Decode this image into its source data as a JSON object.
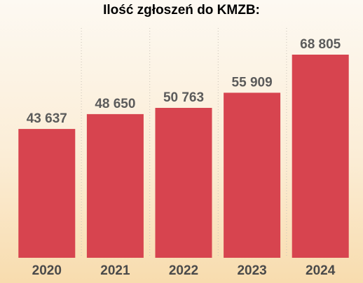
{
  "chart_data": {
    "type": "bar",
    "title": "Ilość zgłoszeń do KMZB:",
    "categories": [
      "2020",
      "2021",
      "2022",
      "2023",
      "2024"
    ],
    "values": [
      43637,
      48650,
      50763,
      55909,
      68805
    ],
    "value_labels": [
      "43 637",
      "48 650",
      "50 763",
      "55 909",
      "68 805"
    ],
    "xlabel": "",
    "ylabel": "",
    "ylim": [
      0,
      68805
    ],
    "grid": true,
    "bar_color": "#d7444f"
  }
}
